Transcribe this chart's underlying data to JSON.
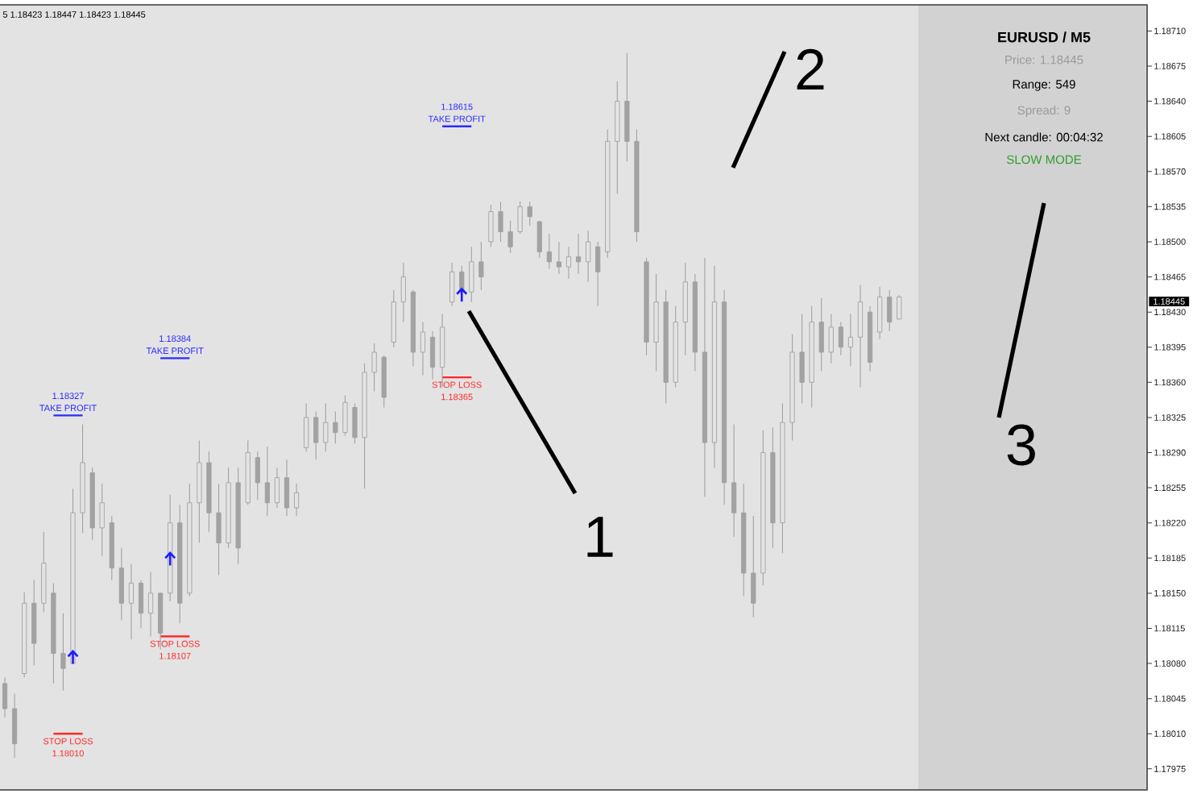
{
  "chart_data": {
    "type": "candlestick",
    "categories": [
      null,
      null,
      null,
      null,
      null,
      null,
      null,
      null,
      null,
      null,
      null,
      null,
      null,
      null,
      null,
      null,
      null,
      null,
      null,
      null,
      null,
      null,
      null,
      null,
      null,
      null,
      null,
      null,
      null,
      null,
      null,
      null,
      null,
      null,
      null,
      null,
      null,
      null,
      null,
      null,
      null,
      null,
      null,
      null,
      null,
      null,
      null,
      null,
      null,
      null,
      null,
      null,
      null,
      null,
      null,
      null,
      null,
      null,
      null,
      null,
      null,
      null,
      null,
      null,
      null,
      null,
      null,
      null,
      null,
      null,
      null,
      null,
      null,
      null,
      null,
      null,
      null,
      null,
      null,
      null,
      null,
      null,
      null,
      null,
      null,
      null,
      null,
      null,
      null,
      null,
      null,
      null,
      null,
      null,
      null,
      null,
      null,
      null,
      null,
      null,
      null,
      null,
      null,
      null,
      null,
      null,
      null,
      null,
      null,
      null,
      null,
      null,
      null,
      null,
      null,
      null,
      null,
      null
    ],
    "ohlc": [
      [
        1.1806,
        1.18066,
        1.18026,
        1.18035
      ],
      [
        1.18035,
        1.1805,
        1.17986,
        1.18
      ],
      [
        1.1807,
        1.18151,
        1.18066,
        1.1814
      ],
      [
        1.1814,
        1.18163,
        1.18078,
        1.181
      ],
      [
        1.1814,
        1.18211,
        1.18131,
        1.1818
      ],
      [
        1.1815,
        1.1816,
        1.1806,
        1.1809
      ],
      [
        1.1809,
        1.1813,
        1.18053,
        1.18075
      ],
      [
        1.1808,
        1.18254,
        1.1808,
        1.1823
      ],
      [
        1.1823,
        1.18318,
        1.1821,
        1.1828
      ],
      [
        1.1827,
        1.18275,
        1.18203,
        1.18215
      ],
      [
        1.18215,
        1.18259,
        1.18187,
        1.1824
      ],
      [
        1.1822,
        1.18227,
        1.18163,
        1.18175
      ],
      [
        1.18175,
        1.18195,
        1.18123,
        1.1814
      ],
      [
        1.1814,
        1.18179,
        1.18104,
        1.1816
      ],
      [
        1.1816,
        1.18163,
        1.18115,
        1.1813
      ],
      [
        1.1813,
        1.18171,
        1.18107,
        1.1815
      ],
      [
        1.1815,
        1.1815,
        1.18094,
        1.1811
      ],
      [
        1.1815,
        1.18248,
        1.18142,
        1.1822
      ],
      [
        1.1822,
        1.18238,
        1.1812,
        1.1814
      ],
      [
        1.1815,
        1.18259,
        1.18147,
        1.1824
      ],
      [
        1.1824,
        1.18302,
        1.182,
        1.1828
      ],
      [
        1.1828,
        1.18291,
        1.18211,
        1.1823
      ],
      [
        1.1823,
        1.18259,
        1.18168,
        1.182
      ],
      [
        1.182,
        1.18275,
        1.18195,
        1.1826
      ],
      [
        1.1826,
        1.18275,
        1.18179,
        1.18195
      ],
      [
        1.1824,
        1.18302,
        1.18238,
        1.1829
      ],
      [
        1.18285,
        1.18291,
        1.18243,
        1.1826
      ],
      [
        1.1826,
        1.18296,
        1.18227,
        1.1824
      ],
      [
        1.1824,
        1.18275,
        1.18235,
        1.18265
      ],
      [
        1.18265,
        1.18283,
        1.18227,
        1.18235
      ],
      [
        1.18235,
        1.18259,
        1.18227,
        1.1825
      ],
      [
        1.18295,
        1.18339,
        1.18291,
        1.18325
      ],
      [
        1.18325,
        1.18331,
        1.18283,
        1.183
      ],
      [
        1.183,
        1.18339,
        1.18291,
        1.1832
      ],
      [
        1.1832,
        1.18331,
        1.18299,
        1.1831
      ],
      [
        1.1831,
        1.18347,
        1.18307,
        1.1834
      ],
      [
        1.18335,
        1.18339,
        1.18299,
        1.18305
      ],
      [
        1.18305,
        1.18379,
        1.18254,
        1.1837
      ],
      [
        1.1837,
        1.18399,
        1.18351,
        1.1839
      ],
      [
        1.18385,
        1.18387,
        1.18335,
        1.18345
      ],
      [
        1.184,
        1.18452,
        1.18395,
        1.1844
      ],
      [
        1.1844,
        1.18479,
        1.1842,
        1.18465
      ],
      [
        1.1845,
        1.18452,
        1.18376,
        1.1839
      ],
      [
        1.1839,
        1.1842,
        1.18367,
        1.1841
      ],
      [
        1.18405,
        1.18411,
        1.18363,
        1.18375
      ],
      [
        1.18375,
        1.18428,
        1.18355,
        1.18415
      ],
      [
        1.1844,
        1.18479,
        1.18436,
        1.1847
      ],
      [
        1.1847,
        1.18476,
        1.1844,
        1.1845
      ],
      [
        1.1845,
        1.18495,
        1.1844,
        1.1848
      ],
      [
        1.1848,
        1.185,
        1.18452,
        1.18465
      ],
      [
        1.185,
        1.18537,
        1.18495,
        1.1853
      ],
      [
        1.1853,
        1.1854,
        1.185,
        1.1851
      ],
      [
        1.1851,
        1.18521,
        1.18489,
        1.18495
      ],
      [
        1.1851,
        1.1854,
        1.18508,
        1.18535
      ],
      [
        1.18535,
        1.1854,
        1.18516,
        1.18525
      ],
      [
        1.1852,
        1.18521,
        1.18484,
        1.1849
      ],
      [
        1.1849,
        1.18508,
        1.18473,
        1.1848
      ],
      [
        1.1848,
        1.185,
        1.18468,
        1.18475
      ],
      [
        1.18475,
        1.18495,
        1.18463,
        1.18485
      ],
      [
        1.18485,
        1.18508,
        1.18468,
        1.1848
      ],
      [
        1.1848,
        1.18511,
        1.1846,
        1.185
      ],
      [
        1.18495,
        1.185,
        1.18436,
        1.1847
      ],
      [
        1.1849,
        1.18612,
        1.18484,
        1.186
      ],
      [
        1.186,
        1.1866,
        1.18548,
        1.1864
      ],
      [
        1.1864,
        1.18688,
        1.1858,
        1.186
      ],
      [
        1.186,
        1.18612,
        1.185,
        1.1851
      ],
      [
        1.1848,
        1.18484,
        1.18387,
        1.184
      ],
      [
        1.184,
        1.18468,
        1.18371,
        1.1844
      ],
      [
        1.1844,
        1.18452,
        1.18339,
        1.1836
      ],
      [
        1.1836,
        1.18436,
        1.18355,
        1.1842
      ],
      [
        1.1842,
        1.18479,
        1.18387,
        1.1846
      ],
      [
        1.1846,
        1.18468,
        1.18371,
        1.1839
      ],
      [
        1.1839,
        1.18484,
        1.18246,
        1.183
      ],
      [
        1.183,
        1.18476,
        1.18275,
        1.1844
      ],
      [
        1.1844,
        1.18452,
        1.18238,
        1.1826
      ],
      [
        1.1826,
        1.18318,
        1.18206,
        1.1823
      ],
      [
        1.1823,
        1.18259,
        1.18147,
        1.1817
      ],
      [
        1.1817,
        1.18227,
        1.18126,
        1.1814
      ],
      [
        1.1817,
        1.18312,
        1.18158,
        1.1829
      ],
      [
        1.1829,
        1.18315,
        1.18195,
        1.1822
      ],
      [
        1.1822,
        1.18339,
        1.1819,
        1.1832
      ],
      [
        1.1832,
        1.18408,
        1.18302,
        1.1839
      ],
      [
        1.1839,
        1.18428,
        1.18339,
        1.1836
      ],
      [
        1.1836,
        1.18436,
        1.18335,
        1.1842
      ],
      [
        1.1842,
        1.18444,
        1.18371,
        1.1839
      ],
      [
        1.1839,
        1.18428,
        1.18379,
        1.18415
      ],
      [
        1.18415,
        1.1842,
        1.18387,
        1.18395
      ],
      [
        1.18395,
        1.18428,
        1.18376,
        1.18405
      ],
      [
        1.18405,
        1.18457,
        1.18355,
        1.1844
      ],
      [
        1.1843,
        1.18436,
        1.18371,
        1.1838
      ],
      [
        1.1841,
        1.18455,
        1.18403,
        1.18445
      ],
      [
        1.18445,
        1.18452,
        1.18411,
        1.1842
      ],
      [
        1.18423,
        1.18447,
        1.18423,
        1.18445
      ],
      null,
      null,
      null,
      null,
      null,
      null,
      null,
      null,
      null,
      null,
      null,
      null,
      null,
      null,
      null,
      null,
      null,
      null,
      null,
      null,
      null,
      null,
      null,
      null,
      null
    ],
    "color": "#a2a2a2",
    "series": [
      {
        "type": "line",
        "name": "TAKE PROFIT",
        "color": "#2b2bff",
        "values": [
          null,
          null,
          null,
          null,
          null,
          1.18327,
          1.18327,
          1.18327,
          1.18327,
          null,
          null,
          null,
          null,
          null,
          null,
          null,
          1.18384,
          1.18384,
          1.18384,
          1.18384,
          null,
          null,
          null,
          null,
          null,
          null,
          null,
          null,
          null,
          null,
          null,
          null,
          null,
          null,
          null,
          null,
          null,
          null,
          null,
          null,
          null,
          null,
          null,
          null,
          null,
          1.18615,
          1.18615,
          1.18615,
          1.18615,
          null,
          null,
          null,
          null,
          null,
          null,
          null,
          null,
          null,
          null,
          null,
          null,
          null,
          null,
          null,
          null,
          null,
          null,
          null,
          null,
          null,
          null,
          null,
          null,
          null,
          null,
          null,
          null,
          null,
          null,
          null,
          null,
          null,
          null,
          null,
          null,
          null,
          null,
          null,
          null,
          null,
          null,
          null,
          null,
          null,
          null,
          null,
          null,
          null,
          null,
          null,
          null,
          null,
          null,
          null,
          null,
          null,
          null,
          null,
          null,
          null,
          null,
          null,
          null,
          null,
          null,
          null,
          null,
          null
        ],
        "value_labels": [
          null,
          null,
          null,
          null,
          null,
          null,
          "1.18327",
          null,
          null,
          null,
          null,
          null,
          null,
          null,
          null,
          null,
          null,
          "1.18384",
          null,
          null,
          null,
          null,
          null,
          null,
          null,
          null,
          null,
          null,
          null,
          null,
          null,
          null,
          null,
          null,
          null,
          null,
          null,
          null,
          null,
          null,
          null,
          null,
          null,
          null,
          null,
          null,
          "1.18615",
          null,
          null,
          null,
          null,
          null,
          null,
          null,
          null,
          null,
          null,
          null,
          null,
          null,
          null,
          null,
          null,
          null,
          null,
          null,
          null,
          null,
          null,
          null,
          null,
          null,
          null,
          null,
          null,
          null,
          null,
          null,
          null,
          null,
          null,
          null,
          null,
          null,
          null,
          null,
          null,
          null,
          null,
          null,
          null,
          null,
          null,
          null,
          null,
          null,
          null,
          null,
          null,
          null,
          null,
          null,
          null,
          null,
          null,
          null,
          null,
          null,
          null,
          null,
          null,
          null,
          null,
          null,
          null,
          null,
          null,
          null
        ]
      },
      {
        "type": "line",
        "name": "STOP LOSS",
        "color": "#ff2a2a",
        "values": [
          null,
          null,
          null,
          null,
          null,
          1.1801,
          1.1801,
          1.1801,
          1.1801,
          null,
          null,
          null,
          null,
          null,
          null,
          null,
          1.18107,
          1.18107,
          1.18107,
          1.18107,
          null,
          null,
          null,
          null,
          null,
          null,
          null,
          null,
          null,
          null,
          null,
          null,
          null,
          null,
          null,
          null,
          null,
          null,
          null,
          null,
          null,
          null,
          null,
          null,
          null,
          1.18365,
          1.18365,
          1.18365,
          1.18365,
          null,
          null,
          null,
          null,
          null,
          null,
          null,
          null,
          null,
          null,
          null,
          null,
          null,
          null,
          null,
          null,
          null,
          null,
          null,
          null,
          null,
          null,
          null,
          null,
          null,
          null,
          null,
          null,
          null,
          null,
          null,
          null,
          null,
          null,
          null,
          null,
          null,
          null,
          null,
          null,
          null,
          null,
          null,
          null,
          null,
          null,
          null,
          null,
          null,
          null,
          null,
          null,
          null,
          null,
          null,
          null,
          null,
          null,
          null,
          null,
          null,
          null,
          null,
          null,
          null,
          null,
          null,
          null,
          null
        ],
        "value_labels": [
          null,
          null,
          null,
          null,
          null,
          null,
          "1.18010",
          null,
          null,
          null,
          null,
          null,
          null,
          null,
          null,
          null,
          null,
          "1.18107",
          null,
          null,
          null,
          null,
          null,
          null,
          null,
          null,
          null,
          null,
          null,
          null,
          null,
          null,
          null,
          null,
          null,
          null,
          null,
          null,
          null,
          null,
          null,
          null,
          null,
          null,
          null,
          null,
          "1.18365",
          null,
          null,
          null,
          null,
          null,
          null,
          null,
          null,
          null,
          null,
          null,
          null,
          null,
          null,
          null,
          null,
          null,
          null,
          null,
          null,
          null,
          null,
          null,
          null,
          null,
          null,
          null,
          null,
          null,
          null,
          null,
          null,
          null,
          null,
          null,
          null,
          null,
          null,
          null,
          null,
          null,
          null,
          null,
          null,
          null,
          null,
          null,
          null,
          null,
          null,
          null,
          null,
          null,
          null,
          null,
          null,
          null,
          null,
          null,
          null,
          null,
          null,
          null,
          null,
          null,
          null,
          null,
          null,
          null,
          null,
          null
        ]
      },
      {
        "type": "scatter",
        "color": "#1c1cff",
        "values": [
          null,
          null,
          null,
          null,
          null,
          null,
          null,
          1.18086,
          null,
          null,
          null,
          null,
          null,
          null,
          null,
          null,
          null,
          1.18184,
          null,
          null,
          null,
          null,
          null,
          null,
          null,
          null,
          null,
          null,
          null,
          null,
          null,
          null,
          null,
          null,
          null,
          null,
          null,
          null,
          null,
          null,
          null,
          null,
          null,
          null,
          null,
          null,
          null,
          1.18447,
          null,
          null,
          null,
          null,
          null,
          null,
          null,
          null,
          null,
          null,
          null,
          null,
          null,
          null,
          null,
          null,
          null,
          null,
          null,
          null,
          null,
          null,
          null,
          null,
          null,
          null,
          null,
          null,
          null,
          null,
          null,
          null,
          null,
          null,
          null,
          null,
          null,
          null,
          null,
          null,
          null,
          null,
          null,
          null,
          null,
          null,
          null,
          null,
          null,
          null,
          null,
          null,
          null,
          null,
          null,
          null,
          null,
          null,
          null,
          null,
          null,
          null,
          null,
          null,
          null,
          null,
          null,
          null,
          null,
          null
        ]
      }
    ],
    "ylim": [
      1.17954,
      1.18736
    ],
    "yticks": [
      1.17975,
      {
        "value": 1.1801,
        "label": "1.18010"
      },
      1.18045,
      {
        "value": 1.1808,
        "label": "1.18080"
      },
      1.18115,
      {
        "value": 1.1815,
        "label": "1.18150"
      },
      1.18185,
      {
        "value": 1.1822,
        "label": "1.18220"
      },
      1.18255,
      {
        "value": 1.1829,
        "label": "1.18290"
      },
      1.18325,
      {
        "value": 1.1836,
        "label": "1.18360"
      },
      1.18395,
      {
        "value": 1.1843,
        "label": "1.18430"
      },
      1.18465,
      {
        "value": 1.185,
        "label": "1.18500"
      },
      1.18535,
      {
        "value": 1.1857,
        "label": "1.18570"
      },
      1.18605,
      {
        "value": 1.1864,
        "label": "1.18640"
      },
      1.18675,
      {
        "value": 1.1871,
        "label": "1.18710"
      }
    ],
    "tick_labels": "y",
    "annotations": [
      "5 1.18423 1.18447 1.18423 1.18445",
      "EURUSD / M5",
      "Price: 1.18445",
      "Range: 549",
      "Spread: 9",
      "Next candle: 00:04:32",
      "SLOW MODE",
      "1",
      "2",
      "3",
      "1.18445"
    ]
  }
}
